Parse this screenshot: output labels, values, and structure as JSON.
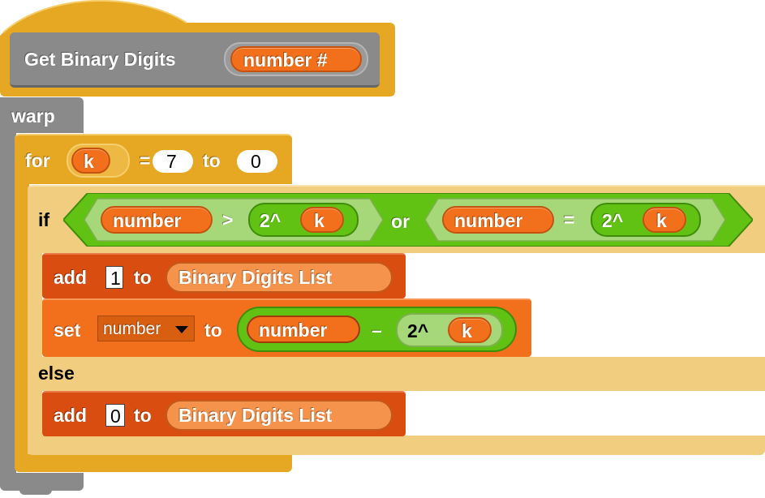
{
  "hat_block": {
    "label": "Get Binary Digits",
    "parameter": "number #"
  },
  "warp_block": {
    "label": "warp"
  },
  "for_block": {
    "keyword": "for",
    "var": "k",
    "eq": "=",
    "start": "7",
    "to": "to",
    "end": "0"
  },
  "if_block": {
    "keyword": "if",
    "or": "or",
    "left": {
      "var": "number",
      "op": ">",
      "pow": "2^",
      "pow_arg": "k"
    },
    "right": {
      "var": "number",
      "op": "=",
      "pow": "2^",
      "pow_arg": "k"
    },
    "else": "else"
  },
  "add_one": {
    "add": "add",
    "value": "1",
    "to": "to",
    "list": "Binary Digits List"
  },
  "set_block": {
    "set": "set",
    "var_menu": "number",
    "to": "to",
    "left": "number",
    "op": "–",
    "pow": "2^",
    "pow_arg": "k"
  },
  "add_zero": {
    "add": "add",
    "value": "0",
    "to": "to",
    "list": "Binary Digits List"
  },
  "colors": {
    "control": "#E6A822",
    "other": "#8A8A8A",
    "variables": "#F2701C",
    "lists": "#D94D11",
    "operators": "#62C213"
  }
}
